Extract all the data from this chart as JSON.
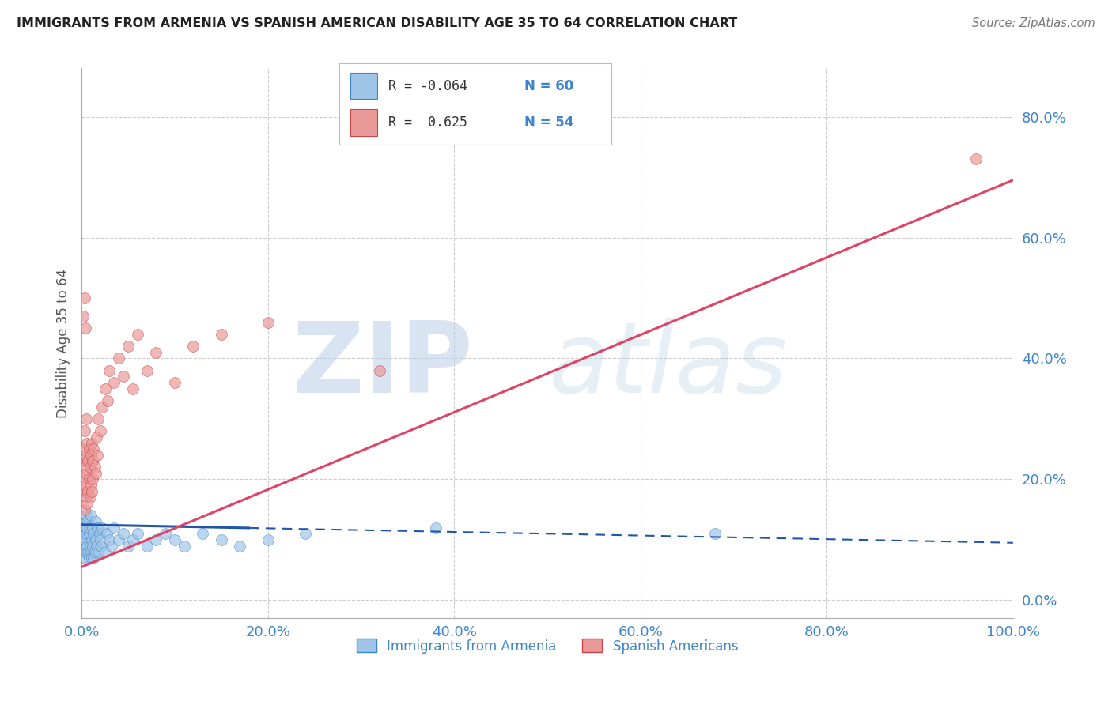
{
  "title": "IMMIGRANTS FROM ARMENIA VS SPANISH AMERICAN DISABILITY AGE 35 TO 64 CORRELATION CHART",
  "source": "Source: ZipAtlas.com",
  "ylabel": "Disability Age 35 to 64",
  "xlim": [
    0.0,
    1.0
  ],
  "ylim": [
    -0.03,
    0.88
  ],
  "yticks_right": [
    0.0,
    0.2,
    0.4,
    0.6,
    0.8
  ],
  "color_blue": "#9fc5e8",
  "color_pink": "#ea9999",
  "color_blue_dark": "#3d85c8",
  "color_pink_dark": "#cc4444",
  "color_blue_line": "#2255aa",
  "color_pink_line": "#dd4466",
  "background_color": "#ffffff",
  "grid_color": "#cccccc",
  "blue_scatter_x": [
    0.001,
    0.002,
    0.002,
    0.003,
    0.003,
    0.003,
    0.004,
    0.004,
    0.004,
    0.005,
    0.005,
    0.005,
    0.006,
    0.006,
    0.007,
    0.007,
    0.008,
    0.008,
    0.009,
    0.009,
    0.01,
    0.01,
    0.011,
    0.011,
    0.012,
    0.012,
    0.013,
    0.013,
    0.014,
    0.015,
    0.015,
    0.016,
    0.017,
    0.018,
    0.019,
    0.02,
    0.021,
    0.022,
    0.025,
    0.027,
    0.03,
    0.032,
    0.035,
    0.04,
    0.045,
    0.05,
    0.055,
    0.06,
    0.07,
    0.08,
    0.09,
    0.1,
    0.11,
    0.13,
    0.15,
    0.17,
    0.2,
    0.24,
    0.38,
    0.68
  ],
  "blue_scatter_y": [
    0.08,
    0.1,
    0.12,
    0.09,
    0.11,
    0.13,
    0.07,
    0.1,
    0.12,
    0.08,
    0.11,
    0.14,
    0.09,
    0.12,
    0.08,
    0.13,
    0.07,
    0.11,
    0.09,
    0.12,
    0.08,
    0.14,
    0.07,
    0.1,
    0.09,
    0.12,
    0.07,
    0.11,
    0.08,
    0.1,
    0.13,
    0.09,
    0.12,
    0.08,
    0.11,
    0.1,
    0.09,
    0.12,
    0.08,
    0.11,
    0.1,
    0.09,
    0.12,
    0.1,
    0.11,
    0.09,
    0.1,
    0.11,
    0.09,
    0.1,
    0.11,
    0.1,
    0.09,
    0.11,
    0.1,
    0.09,
    0.1,
    0.11,
    0.12,
    0.11
  ],
  "pink_scatter_x": [
    0.001,
    0.001,
    0.002,
    0.002,
    0.003,
    0.003,
    0.003,
    0.004,
    0.004,
    0.005,
    0.005,
    0.006,
    0.006,
    0.007,
    0.007,
    0.008,
    0.008,
    0.009,
    0.009,
    0.01,
    0.01,
    0.011,
    0.011,
    0.012,
    0.012,
    0.013,
    0.014,
    0.015,
    0.016,
    0.017,
    0.018,
    0.02,
    0.022,
    0.025,
    0.028,
    0.03,
    0.035,
    0.04,
    0.045,
    0.05,
    0.055,
    0.06,
    0.07,
    0.08,
    0.1,
    0.12,
    0.15,
    0.2,
    0.002,
    0.003,
    0.004,
    0.005,
    0.32,
    0.96
  ],
  "pink_scatter_y": [
    0.2,
    0.25,
    0.18,
    0.23,
    0.15,
    0.22,
    0.28,
    0.19,
    0.24,
    0.17,
    0.21,
    0.16,
    0.26,
    0.18,
    0.23,
    0.2,
    0.25,
    0.17,
    0.22,
    0.19,
    0.24,
    0.18,
    0.26,
    0.2,
    0.23,
    0.25,
    0.22,
    0.21,
    0.27,
    0.24,
    0.3,
    0.28,
    0.32,
    0.35,
    0.33,
    0.38,
    0.36,
    0.4,
    0.37,
    0.42,
    0.35,
    0.44,
    0.38,
    0.41,
    0.36,
    0.42,
    0.44,
    0.46,
    0.47,
    0.5,
    0.45,
    0.3,
    0.38,
    0.73
  ],
  "blue_line_y0": 0.125,
  "blue_line_y1": 0.095,
  "pink_line_y0": 0.055,
  "pink_line_y1": 0.695
}
